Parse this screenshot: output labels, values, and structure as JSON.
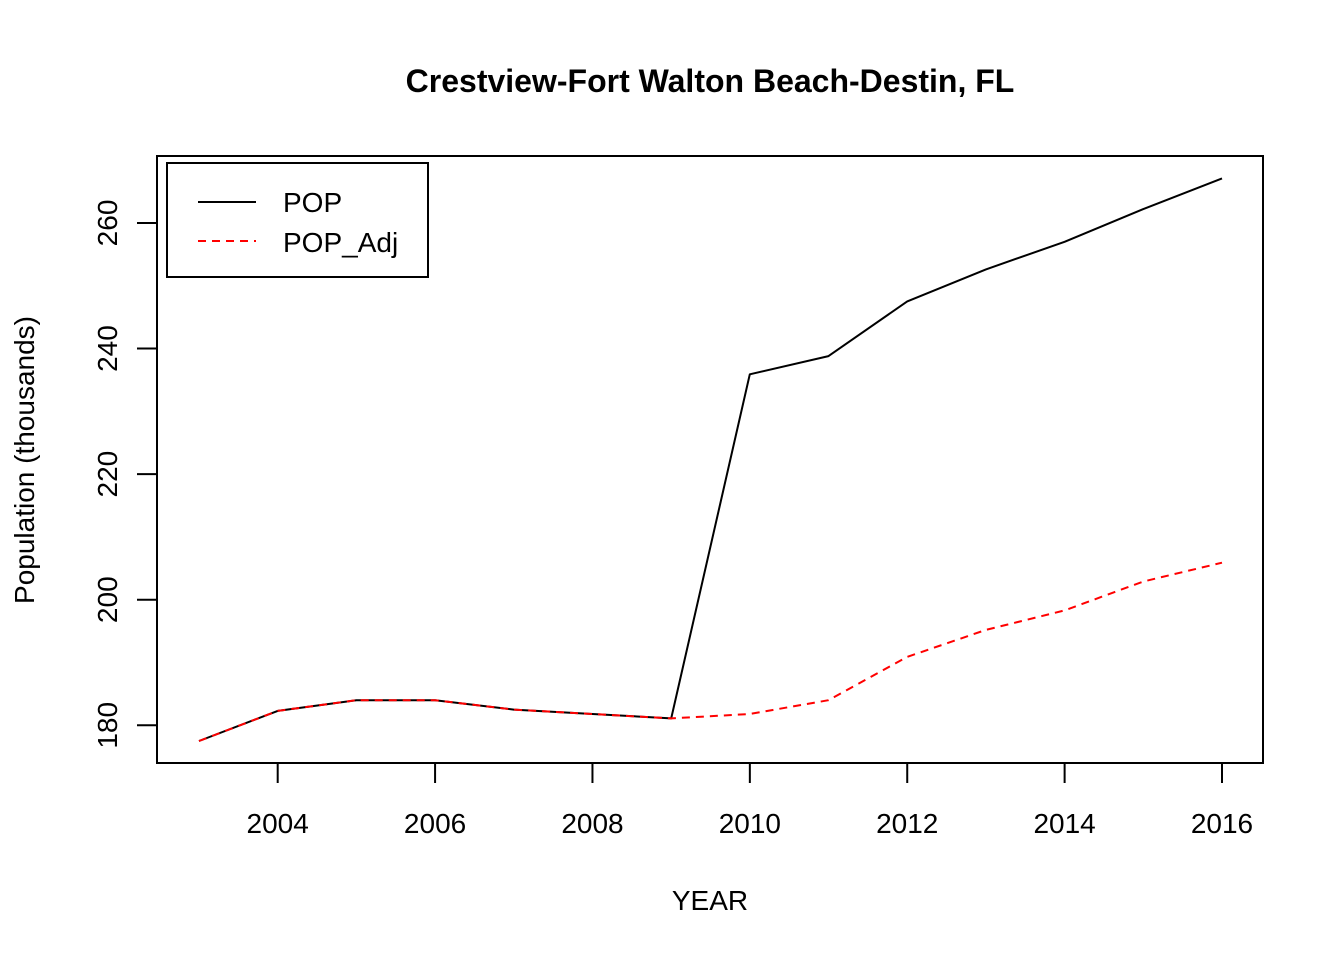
{
  "chart_data": {
    "type": "line",
    "title": "Crestview-Fort Walton Beach-Destin, FL",
    "xlabel": "YEAR",
    "ylabel": "Population (thousands)",
    "xlim": [
      2003,
      2016
    ],
    "ylim": [
      177.5,
      267
    ],
    "xticks": [
      2004,
      2006,
      2008,
      2010,
      2012,
      2014,
      2016
    ],
    "yticks": [
      180,
      200,
      220,
      240,
      260
    ],
    "legend_position": "top-left",
    "x": [
      2003,
      2004,
      2005,
      2006,
      2007,
      2008,
      2009,
      2010,
      2011,
      2012,
      2013,
      2014,
      2015,
      2016
    ],
    "series": [
      {
        "name": "POP",
        "color": "#000000",
        "dash": "solid",
        "values": [
          177.5,
          182.3,
          184.0,
          184.0,
          182.5,
          181.8,
          181.1,
          235.9,
          238.8,
          247.5,
          252.6,
          257.0,
          262.2,
          267.1
        ]
      },
      {
        "name": "POP_Adj",
        "color": "#ff0000",
        "dash": "dashed",
        "values": [
          177.5,
          182.3,
          184.0,
          184.0,
          182.5,
          181.8,
          181.1,
          181.8,
          184.0,
          190.9,
          195.2,
          198.3,
          202.9,
          205.9
        ]
      }
    ]
  }
}
